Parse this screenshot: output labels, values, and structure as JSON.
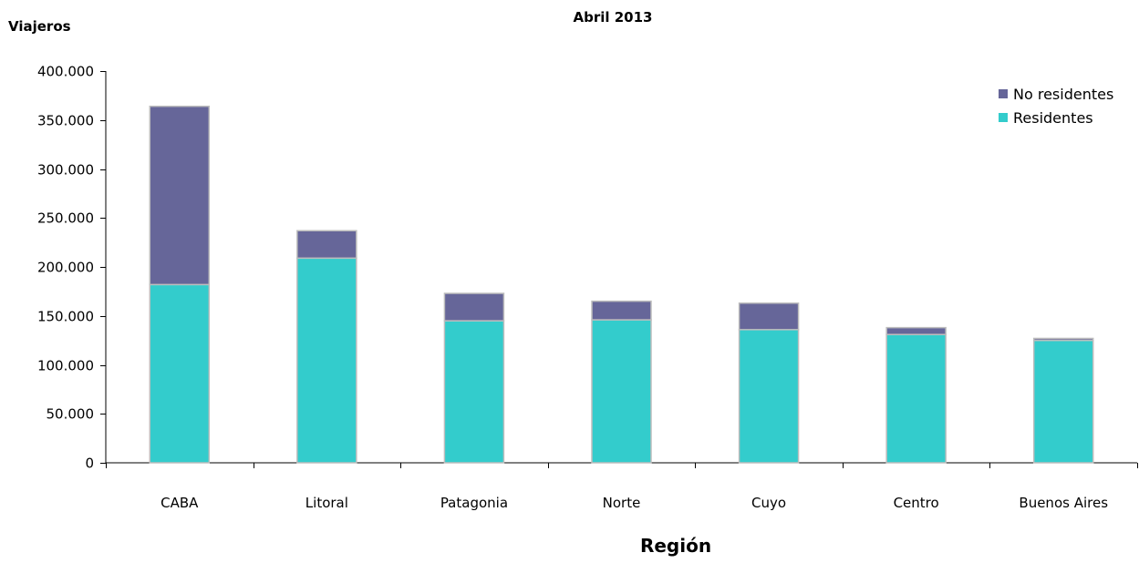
{
  "chart_data": {
    "type": "bar",
    "stacked": true,
    "title": "Abril 2013",
    "ylabel": "Viajeros",
    "xlabel": "Región",
    "ylim": [
      0,
      400000
    ],
    "yticks": [
      0,
      50000,
      100000,
      150000,
      200000,
      250000,
      300000,
      350000,
      400000
    ],
    "ytick_labels": [
      "0",
      "50.000",
      "100.000",
      "150.000",
      "200.000",
      "250.000",
      "300.000",
      "350.000",
      "400.000"
    ],
    "categories": [
      "CABA",
      "Litoral",
      "Patagonia",
      "Norte",
      "Cuyo",
      "Centro",
      "Buenos Aires"
    ],
    "series": [
      {
        "name": "Residentes",
        "color": "#33cccc",
        "values": [
          182000,
          209000,
          145000,
          146000,
          136000,
          131000,
          125000
        ]
      },
      {
        "name": "No residentes",
        "color": "#666699",
        "values": [
          182000,
          28000,
          28000,
          19000,
          27000,
          7000,
          2000
        ]
      }
    ],
    "legend": {
      "position": "top-right",
      "order": [
        "No residentes",
        "Residentes"
      ]
    },
    "grid": false
  }
}
